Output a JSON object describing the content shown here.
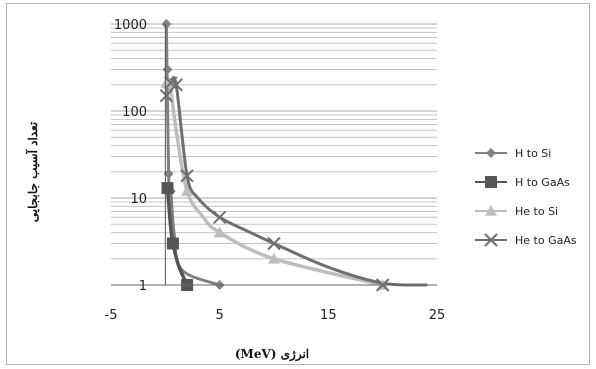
{
  "chart_data": {
    "type": "scatter",
    "title": "",
    "xlabel": "انرژی (MeV)",
    "ylabel": "تعداد آسیب جابجایی",
    "x_ticks": [
      -5,
      5,
      15,
      25
    ],
    "xlim": [
      -5,
      25
    ],
    "y_ticks": [
      1,
      10,
      100,
      1000
    ],
    "ylim": [
      1,
      1000
    ],
    "y_scale": "log",
    "grid": true,
    "legend_position": "right",
    "series": [
      {
        "name": "H to Si",
        "marker": "diamond",
        "color": "#808080",
        "points": [
          [
            0.1,
            1000
          ],
          [
            0.2,
            300
          ],
          [
            0.3,
            19
          ],
          [
            0.5,
            12
          ],
          [
            5,
            1
          ]
        ],
        "curve": [
          [
            0.1,
            1000
          ],
          [
            0.3,
            19
          ],
          [
            0.5,
            12
          ],
          [
            0.8,
            4
          ],
          [
            1.5,
            1.5
          ],
          [
            5,
            1
          ]
        ]
      },
      {
        "name": "H to GaAs",
        "marker": "square",
        "color": "#555555",
        "points": [
          [
            0.2,
            13
          ],
          [
            0.7,
            3
          ],
          [
            2,
            1
          ]
        ],
        "curve": [
          [
            0.2,
            13
          ],
          [
            0.5,
            4.5
          ],
          [
            0.7,
            3
          ],
          [
            1.2,
            1.7
          ],
          [
            2,
            1
          ]
        ]
      },
      {
        "name": "He to Si",
        "marker": "triangle",
        "color": "#bdbdbd",
        "points": [
          [
            0.1,
            210
          ],
          [
            0.4,
            210
          ],
          [
            2,
            12
          ],
          [
            5,
            4
          ],
          [
            10,
            2
          ],
          [
            20,
            1
          ]
        ],
        "curve": [
          [
            0.1,
            210
          ],
          [
            0.4,
            210
          ],
          [
            1,
            60
          ],
          [
            2,
            12
          ],
          [
            3.5,
            6
          ],
          [
            5,
            4
          ],
          [
            10,
            2
          ],
          [
            20,
            1
          ]
        ]
      },
      {
        "name": "He to GaAs",
        "marker": "x",
        "color": "#6f6f6f",
        "points": [
          [
            0.1,
            150
          ],
          [
            0.5,
            210
          ],
          [
            1,
            200
          ],
          [
            2,
            18
          ],
          [
            5,
            6
          ],
          [
            10,
            3
          ],
          [
            20,
            1
          ]
        ],
        "curve": [
          [
            0.5,
            210
          ],
          [
            1,
            200
          ],
          [
            2,
            18
          ],
          [
            3,
            10
          ],
          [
            5,
            6
          ],
          [
            7.5,
            4.2
          ],
          [
            10,
            3
          ],
          [
            15,
            1.6
          ],
          [
            20,
            1.05
          ],
          [
            24,
            1
          ]
        ]
      }
    ]
  }
}
